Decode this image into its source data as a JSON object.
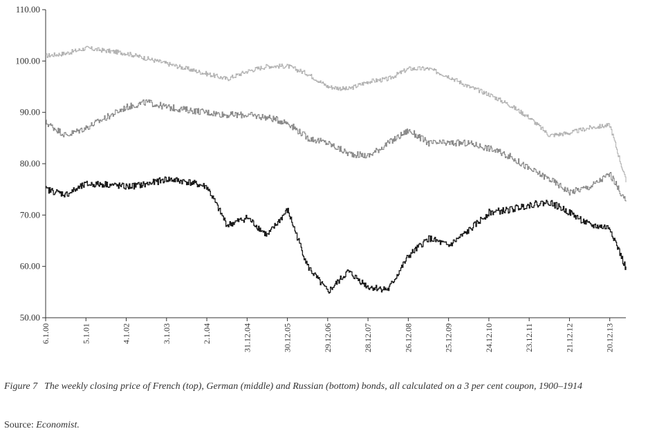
{
  "chart_data": {
    "type": "line",
    "title": "",
    "xlabel": "",
    "ylabel": "",
    "ylim": [
      50,
      110
    ],
    "yticks": [
      "50.00",
      "60.00",
      "70.00",
      "80.00",
      "90.00",
      "100.00",
      "110.00"
    ],
    "xticks": [
      "6.1.00",
      "5.1.01",
      "4.1.02",
      "3.1.03",
      "2.1.04",
      "31.12.04",
      "30.12.05",
      "29.12.06",
      "28.12.07",
      "26.12.08",
      "25.12.09",
      "24.12.10",
      "23.12.11",
      "21.12.12",
      "20.12.13"
    ],
    "x": [
      1900.0,
      1900.5,
      1901.0,
      1901.5,
      1902.0,
      1902.5,
      1903.0,
      1903.5,
      1904.0,
      1904.5,
      1905.0,
      1905.5,
      1906.0,
      1906.5,
      1907.0,
      1907.5,
      1908.0,
      1908.5,
      1909.0,
      1909.5,
      1910.0,
      1910.5,
      1911.0,
      1911.5,
      1912.0,
      1912.5,
      1913.0,
      1913.5,
      1914.0,
      1914.4
    ],
    "series": [
      {
        "name": "French",
        "color": "#b3b3b3",
        "values": [
          101,
          101.5,
          102.5,
          102,
          101.5,
          100.5,
          99.5,
          98.5,
          97.5,
          96.5,
          98,
          99,
          99,
          97.5,
          95,
          94.5,
          96,
          96.5,
          98.5,
          98.5,
          97,
          95,
          93.5,
          91.5,
          89,
          85.5,
          86,
          87,
          87.5,
          76.5
        ]
      },
      {
        "name": "German",
        "color": "#8a8a8a",
        "values": [
          88,
          85.5,
          87,
          89,
          91,
          92,
          91,
          90.5,
          90,
          89.5,
          89.5,
          89,
          88,
          85,
          84,
          82,
          81.5,
          84,
          86.5,
          84,
          84,
          84,
          83,
          81.5,
          79,
          77,
          74.5,
          75.5,
          78,
          72.5
        ]
      },
      {
        "name": "Russian",
        "color": "#1a1a1a",
        "values": [
          75,
          74,
          76,
          76,
          75.5,
          76,
          77,
          76.5,
          75.5,
          68,
          69.5,
          66,
          71,
          60,
          55,
          59,
          56,
          55.5,
          62,
          65.5,
          64,
          67,
          70.5,
          71,
          72,
          72.5,
          70.5,
          68,
          67.5,
          59.5
        ]
      }
    ]
  },
  "caption": {
    "figure_label": "Figure 7",
    "text": "The weekly closing price of French (top), German (middle) and Russian (bottom) bonds, all calculated on a 3 per cent coupon, 1900–1914"
  },
  "source": {
    "prefix": "Source:",
    "name": "Economist."
  }
}
